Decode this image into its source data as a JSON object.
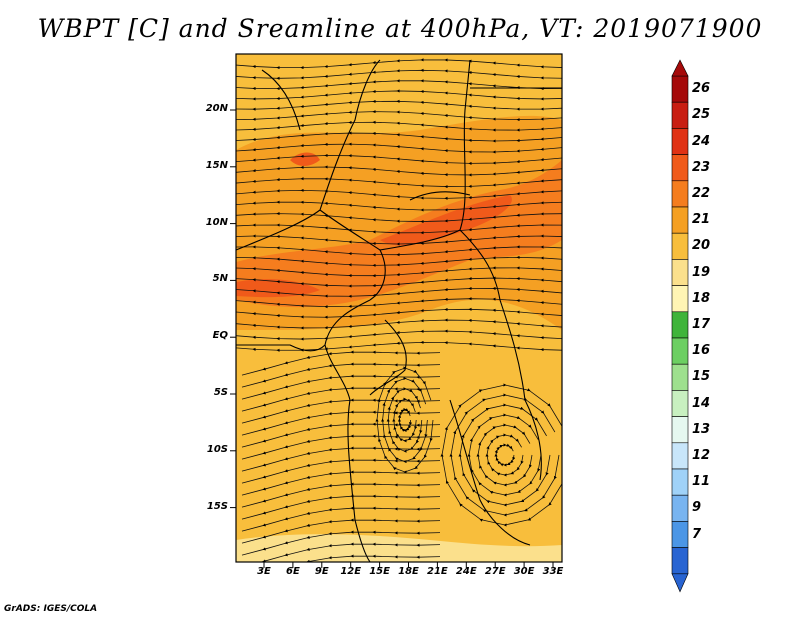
{
  "title": "WBPT [C] and Sreamline at 400hPa, VT: 2019071900",
  "credit": "GrADS: IGES/COLA",
  "map": {
    "lat_ticks": [
      "20N",
      "15N",
      "10N",
      "5N",
      "EQ",
      "5S",
      "10S",
      "15S"
    ],
    "lon_ticks": [
      "3E",
      "6E",
      "9E",
      "12E",
      "15E",
      "18E",
      "21E",
      "24E",
      "27E",
      "30E",
      "33E"
    ],
    "lon_range": [
      0,
      35
    ],
    "lat_range": [
      -20,
      24
    ]
  },
  "colorbar": {
    "labels": [
      "26",
      "25",
      "24",
      "23",
      "22",
      "21",
      "20",
      "19",
      "18",
      "17",
      "16",
      "15",
      "14",
      "13",
      "12",
      "11",
      "9",
      "7"
    ],
    "colors": [
      "#a50a0a",
      "#c81e12",
      "#e03214",
      "#f05a1a",
      "#f57d1e",
      "#f5a023",
      "#f8be3c",
      "#fbe08c",
      "#fff5b4",
      "#3fb43a",
      "#6ccf62",
      "#9ee08e",
      "#c8f0c0",
      "#e6f8f0",
      "#c8e6fa",
      "#a0d2f8",
      "#78b4f0",
      "#4b96e6",
      "#2864d2"
    ]
  },
  "colors": {
    "field_base": "#f8be3c",
    "field_warm": "#f5a023",
    "field_hot": "#f57d1e",
    "field_core": "#f05a1a",
    "field_cool": "#fbe08c"
  }
}
